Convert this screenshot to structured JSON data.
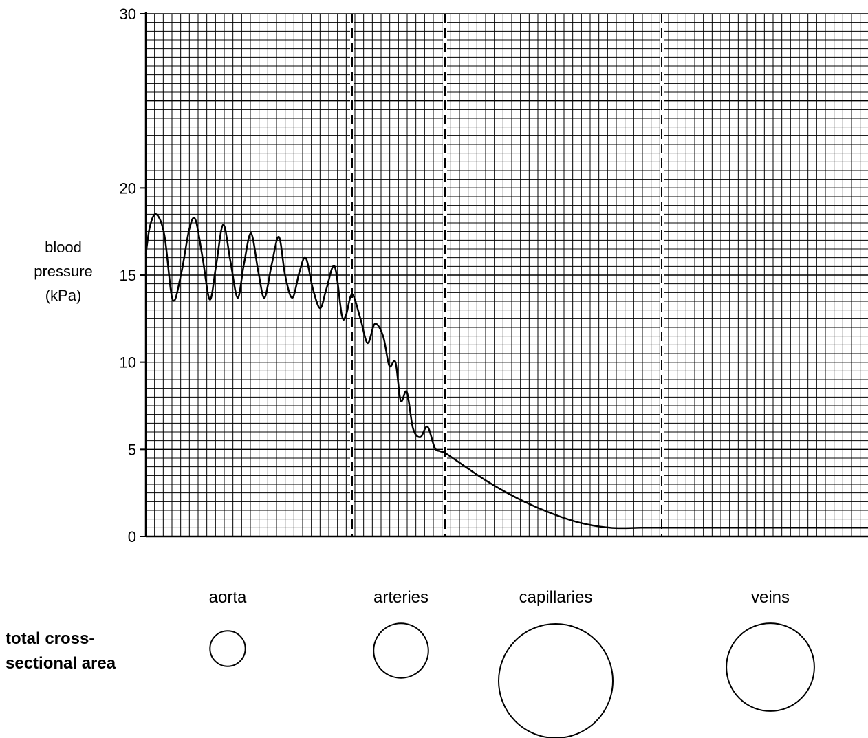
{
  "chart_data": {
    "type": "line",
    "title": "",
    "xlabel": "",
    "ylabel": [
      "blood",
      "pressure",
      "(kPa)"
    ],
    "ylim": [
      0,
      30
    ],
    "yticks": [
      0,
      5,
      10,
      15,
      20,
      30
    ],
    "grid": true,
    "regions": [
      "aorta",
      "arteries",
      "capillaries",
      "veins"
    ],
    "series": [
      {
        "x": [
          0.0,
          0.4,
          1.0,
          1.8,
          2.6,
          3.4,
          4.2,
          4.8,
          5.5,
          6.2,
          6.8,
          7.5,
          8.2,
          8.9,
          9.5,
          10.2,
          10.9,
          11.5,
          12.2,
          12.9,
          13.5,
          14.2,
          14.9,
          15.5,
          16.2,
          16.9,
          17.5,
          18.3,
          19.0,
          19.4,
          20.0,
          20.8,
          21.5,
          22.2,
          23.0,
          23.6,
          24.2,
          24.7,
          25.3,
          25.9,
          26.6,
          27.3,
          28.0,
          28.5,
          29.0,
          30,
          33,
          36,
          39,
          42,
          45,
          48,
          50,
          55,
          60,
          65,
          70
        ],
        "y": [
          16.2,
          17.8,
          18.5,
          17.3,
          13.6,
          15.0,
          17.6,
          18.2,
          16.0,
          13.6,
          15.5,
          17.9,
          15.8,
          13.7,
          15.6,
          17.4,
          15.2,
          13.7,
          15.6,
          17.2,
          15.0,
          13.7,
          15.2,
          16.0,
          14.2,
          13.1,
          14.2,
          15.5,
          12.7,
          12.7,
          13.9,
          12.5,
          11.1,
          12.2,
          11.5,
          9.8,
          10.0,
          7.8,
          8.3,
          6.2,
          5.7,
          6.3,
          5.1,
          4.9,
          4.8,
          4.4,
          3.2,
          2.2,
          1.4,
          0.8,
          0.5,
          0.5,
          0.5,
          0.5,
          0.5,
          0.5,
          0.5
        ]
      }
    ],
    "cross_section": [
      {
        "name": "aorta",
        "relative_radius": 0.31
      },
      {
        "name": "arteries",
        "relative_radius": 0.48
      },
      {
        "name": "capillaries",
        "relative_radius": 1.0
      },
      {
        "name": "veins",
        "relative_radius": 0.77
      }
    ]
  },
  "labels": {
    "row_label_line1": "total cross-",
    "row_label_line2": "sectional area"
  }
}
